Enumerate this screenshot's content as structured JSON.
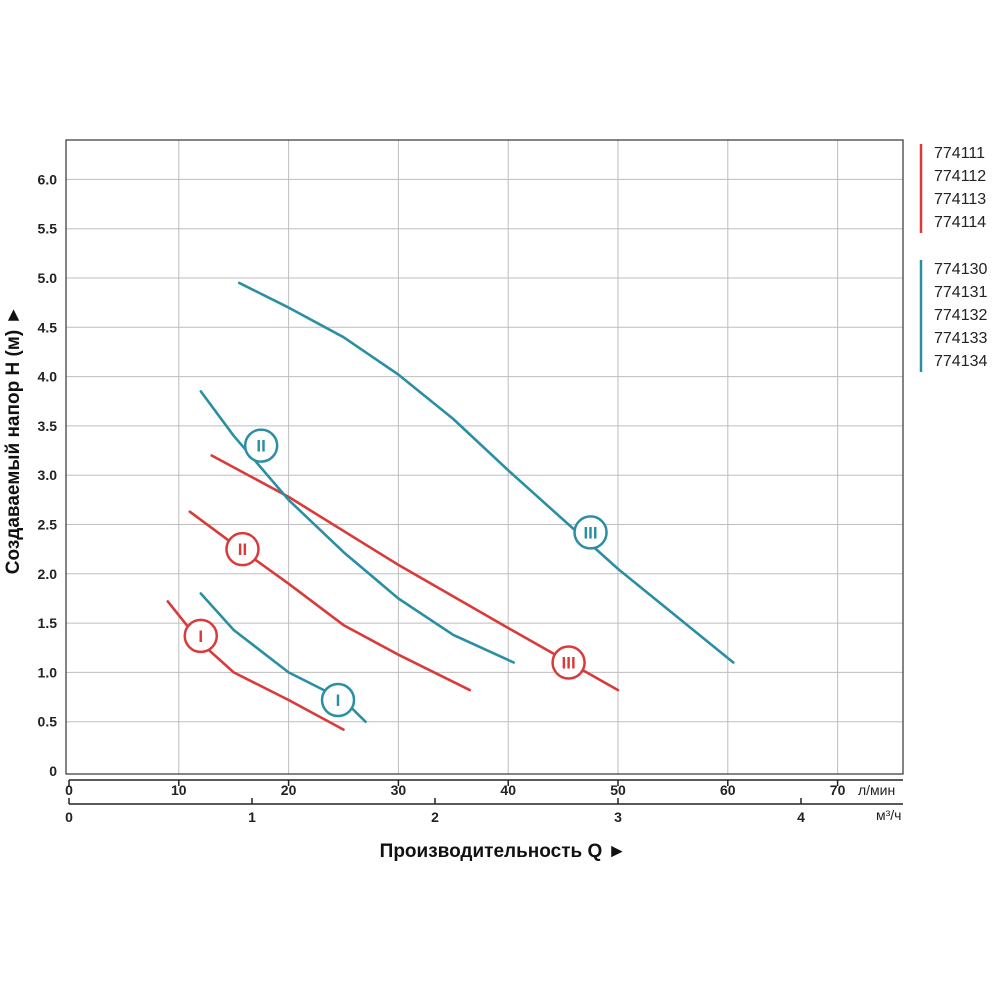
{
  "chart_data": {
    "type": "line",
    "ylabel": "Создаваемый напор H (м) ►",
    "xlabel": "Производительность Q ►",
    "x_unit_top": "л/мин",
    "x_unit_bottom": "м³/ч",
    "xlim": [
      0,
      75
    ],
    "ylim": [
      0,
      6.5
    ],
    "grid": true,
    "y_ticks": [
      "0",
      "0.5",
      "1.0",
      "1.5",
      "2.0",
      "2.5",
      "3.0",
      "3.5",
      "4.0",
      "4.5",
      "5.0",
      "5.5",
      "6.0"
    ],
    "x_ticks_lmin": [
      "0",
      "10",
      "20",
      "30",
      "40",
      "50",
      "60",
      "70"
    ],
    "x_ticks_m3h": [
      "0",
      "1",
      "2",
      "3",
      "4"
    ],
    "colors": {
      "red": "#d93a3a",
      "teal": "#2a8fa3",
      "grid": "#bdbdbd",
      "axis": "#222222"
    },
    "legend": [
      {
        "color": "#d93a3a",
        "items": [
          "774111",
          "774112",
          "774113",
          "774114"
        ]
      },
      {
        "color": "#2a8fa3",
        "items": [
          "774130",
          "774131",
          "774132",
          "774133",
          "774134"
        ]
      }
    ],
    "series": [
      {
        "group": "red",
        "speed": "I",
        "points": [
          [
            9,
            1.72
          ],
          [
            12,
            1.3
          ],
          [
            15,
            1.0
          ],
          [
            20,
            0.72
          ],
          [
            25,
            0.42
          ]
        ]
      },
      {
        "group": "red",
        "speed": "II",
        "points": [
          [
            11,
            2.63
          ],
          [
            15,
            2.3
          ],
          [
            20,
            1.9
          ],
          [
            25,
            1.48
          ],
          [
            30,
            1.18
          ],
          [
            36.5,
            0.82
          ]
        ]
      },
      {
        "group": "red",
        "speed": "III",
        "points": [
          [
            13,
            3.2
          ],
          [
            20,
            2.78
          ],
          [
            30,
            2.09
          ],
          [
            40,
            1.45
          ],
          [
            50,
            0.82
          ]
        ]
      },
      {
        "group": "teal",
        "speed": "I",
        "points": [
          [
            12,
            1.8
          ],
          [
            15,
            1.43
          ],
          [
            20,
            1.0
          ],
          [
            25,
            0.72
          ],
          [
            27,
            0.5
          ]
        ]
      },
      {
        "group": "teal",
        "speed": "II",
        "points": [
          [
            12,
            3.85
          ],
          [
            15,
            3.4
          ],
          [
            20,
            2.75
          ],
          [
            25,
            2.22
          ],
          [
            30,
            1.75
          ],
          [
            35,
            1.38
          ],
          [
            40.5,
            1.1
          ]
        ]
      },
      {
        "group": "teal",
        "speed": "III",
        "points": [
          [
            15.5,
            4.95
          ],
          [
            20,
            4.7
          ],
          [
            25,
            4.4
          ],
          [
            30,
            4.02
          ],
          [
            35,
            3.57
          ],
          [
            40,
            3.05
          ],
          [
            50,
            2.05
          ],
          [
            60.5,
            1.1
          ]
        ]
      }
    ],
    "markers": [
      {
        "label": "I",
        "group": "red",
        "x": 12,
        "y": 1.37
      },
      {
        "label": "II",
        "group": "red",
        "x": 15.8,
        "y": 2.25
      },
      {
        "label": "III",
        "group": "red",
        "x": 45.5,
        "y": 1.1
      },
      {
        "label": "I",
        "group": "teal",
        "x": 24.5,
        "y": 0.72
      },
      {
        "label": "II",
        "group": "teal",
        "x": 17.5,
        "y": 3.3
      },
      {
        "label": "III",
        "group": "teal",
        "x": 47.5,
        "y": 2.42
      }
    ]
  }
}
